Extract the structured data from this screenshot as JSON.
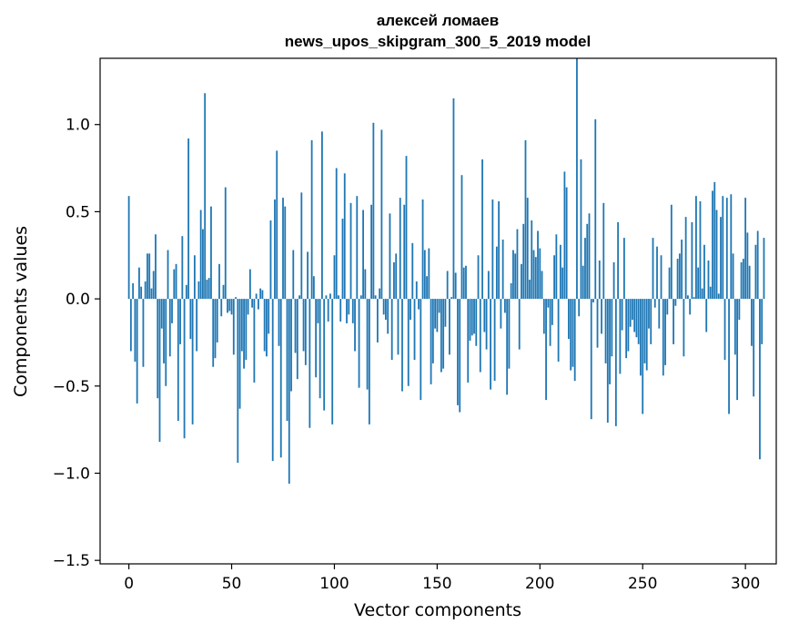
{
  "chart_data": {
    "type": "bar",
    "title": "алексей ломаев\nnews_upos_skipgram_300_5_2019 model",
    "title_lines": [
      "алексей ломаев",
      "news_upos_skipgram_300_5_2019 model"
    ],
    "xlabel": "Vector components",
    "ylabel": "Components values",
    "xlim": [
      -14,
      315
    ],
    "ylim": [
      -1.52,
      1.38
    ],
    "x_ticks": [
      0,
      50,
      100,
      150,
      200,
      250,
      300
    ],
    "y_ticks": [
      -1.5,
      -1.0,
      -0.5,
      0.0,
      0.5,
      1.0
    ],
    "y_tick_labels": [
      "−1.5",
      "−1.0",
      "−0.5",
      "0.0",
      "0.5",
      "1.0"
    ],
    "bar_color": "#1f77b4",
    "grid": false,
    "values": [
      0.59,
      -0.3,
      0.09,
      -0.36,
      -0.6,
      0.18,
      0.07,
      -0.39,
      0.1,
      0.26,
      0.26,
      0.06,
      0.16,
      0.37,
      -0.57,
      -0.82,
      -0.17,
      -0.37,
      -0.5,
      0.28,
      -0.33,
      -0.14,
      0.17,
      0.2,
      -0.7,
      -0.26,
      0.36,
      -0.8,
      0.08,
      0.92,
      -0.23,
      -0.72,
      0.25,
      -0.3,
      0.1,
      0.51,
      0.4,
      1.18,
      0.11,
      0.12,
      0.53,
      -0.39,
      -0.34,
      -0.25,
      0.2,
      -0.1,
      0.08,
      0.64,
      -0.08,
      -0.07,
      -0.09,
      -0.32,
      0.01,
      -0.94,
      -0.63,
      -0.3,
      -0.4,
      -0.35,
      -0.09,
      0.17,
      -0.05,
      -0.48,
      0.03,
      -0.06,
      0.06,
      0.05,
      -0.3,
      -0.33,
      -0.2,
      0.45,
      -0.93,
      0.57,
      0.85,
      -0.27,
      -0.91,
      0.58,
      0.53,
      -0.7,
      -1.06,
      -0.53,
      0.28,
      -0.31,
      -0.46,
      0.02,
      0.61,
      -0.3,
      -0.38,
      0.27,
      -0.74,
      0.91,
      0.13,
      -0.45,
      -0.14,
      -0.57,
      0.96,
      -0.64,
      0.02,
      -0.13,
      0.03,
      -0.72,
      0.25,
      0.75,
      0.02,
      -0.13,
      0.46,
      0.72,
      -0.14,
      -0.09,
      0.55,
      -0.14,
      -0.3,
      0.59,
      -0.51,
      0.02,
      0.51,
      0.17,
      -0.52,
      -0.72,
      0.54,
      1.01,
      0.02,
      -0.25,
      0.06,
      0.97,
      -0.09,
      -0.12,
      -0.2,
      0.49,
      -0.35,
      0.21,
      0.26,
      -0.32,
      0.58,
      -0.53,
      0.54,
      0.82,
      -0.5,
      -0.12,
      0.32,
      -0.35,
      0.1,
      -0.06,
      -0.58,
      0.57,
      0.28,
      0.13,
      0.29,
      -0.49,
      -0.37,
      -0.17,
      -0.19,
      -0.08,
      -0.42,
      -0.4,
      -0.16,
      0.16,
      -0.32,
      0.01,
      1.15,
      0.15,
      -0.61,
      -0.65,
      0.71,
      0.18,
      0.19,
      -0.48,
      -0.24,
      -0.21,
      -0.2,
      -0.27,
      0.25,
      -0.42,
      0.8,
      -0.19,
      -0.29,
      0.16,
      -0.52,
      0.57,
      -0.47,
      0.3,
      0.56,
      -0.17,
      0.34,
      -0.08,
      -0.55,
      -0.4,
      0.09,
      0.28,
      0.26,
      0.4,
      -0.29,
      0.2,
      0.43,
      0.91,
      0.58,
      0.11,
      0.45,
      0.28,
      0.24,
      0.39,
      0.29,
      0.16,
      -0.2,
      -0.58,
      -0.05,
      -0.27,
      -0.15,
      0.25,
      0.37,
      -0.36,
      0.31,
      0.18,
      0.73,
      0.64,
      -0.23,
      -0.41,
      -0.39,
      -0.47,
      1.38,
      -0.1,
      0.8,
      0.19,
      0.35,
      0.43,
      0.49,
      -0.69,
      -0.02,
      1.03,
      -0.28,
      0.22,
      -0.2,
      0.55,
      -0.37,
      -0.71,
      -0.49,
      -0.33,
      0.21,
      -0.73,
      0.44,
      -0.43,
      -0.18,
      0.35,
      -0.34,
      -0.3,
      -0.16,
      -0.12,
      -0.19,
      -0.22,
      -0.26,
      -0.44,
      -0.66,
      -0.37,
      -0.41,
      -0.17,
      -0.26,
      0.35,
      -0.05,
      0.3,
      -0.17,
      0.25,
      -0.44,
      -0.38,
      -0.09,
      0.18,
      0.54,
      -0.26,
      -0.04,
      0.23,
      0.26,
      0.34,
      -0.33,
      0.47,
      0.02,
      -0.09,
      0.44,
      0.01,
      0.59,
      0.18,
      0.56,
      0.06,
      0.31,
      -0.19,
      0.22,
      0.07,
      0.62,
      0.67,
      0.51,
      0.03,
      0.47,
      0.59,
      -0.35,
      0.58,
      -0.66,
      0.6,
      0.26,
      -0.32,
      -0.58,
      -0.12,
      0.21,
      0.23,
      0.58,
      0.38,
      0.19,
      -0.27,
      -0.56,
      0.31,
      0.39,
      -0.92,
      -0.26,
      0.35
    ]
  }
}
